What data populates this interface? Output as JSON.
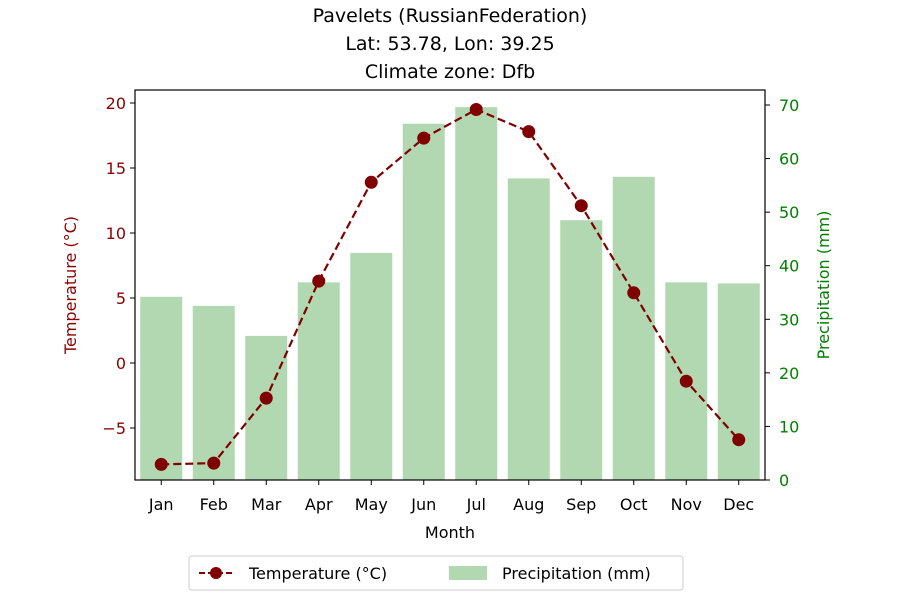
{
  "chart_data": {
    "type": "bar",
    "title_lines": [
      "Pavelets (RussianFederation)",
      "Lat: 53.78, Lon: 39.25",
      "Climate zone: Dfb"
    ],
    "xlabel": "Month",
    "ylabel_left": "Temperature (°C)",
    "ylabel_right": "Precipitation (mm)",
    "categories": [
      "Jan",
      "Feb",
      "Mar",
      "Apr",
      "May",
      "Jun",
      "Jul",
      "Aug",
      "Sep",
      "Oct",
      "Nov",
      "Dec"
    ],
    "left_axis": {
      "ylim": [
        -9,
        21
      ],
      "ticks": [
        -5,
        0,
        5,
        10,
        15,
        20
      ],
      "tick_labels": [
        "−5",
        "0",
        "5",
        "10",
        "15",
        "20"
      ]
    },
    "right_axis": {
      "ylim": [
        0,
        72.8
      ],
      "ticks": [
        0,
        10,
        20,
        30,
        40,
        50,
        60,
        70
      ],
      "tick_labels": [
        "0",
        "10",
        "20",
        "30",
        "40",
        "50",
        "60",
        "70"
      ]
    },
    "series": [
      {
        "name": "Temperature (°C)",
        "type": "line",
        "axis": "left",
        "color": "#800000",
        "values": [
          -7.8,
          -7.7,
          -2.7,
          6.3,
          13.9,
          17.3,
          19.5,
          17.8,
          12.1,
          5.4,
          -1.4,
          -5.9
        ]
      },
      {
        "name": "Precipitation (mm)",
        "type": "bar",
        "axis": "right",
        "color": "#b2d8b2",
        "values": [
          34.2,
          32.5,
          26.9,
          36.9,
          42.4,
          66.5,
          69.6,
          56.3,
          48.5,
          56.6,
          36.9,
          36.7
        ]
      }
    ],
    "legend": {
      "position": "bottom-center",
      "labels": [
        "Temperature (°C)",
        "Precipitation (mm)"
      ]
    },
    "grid": false,
    "colors": {
      "left_axis": "#8b0000",
      "right_axis": "#008000",
      "line": "#800000",
      "bars": "#b2d8b2"
    }
  }
}
